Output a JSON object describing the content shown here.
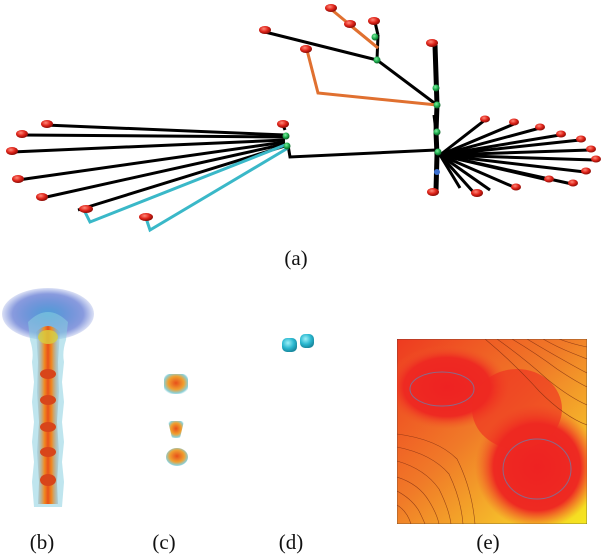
{
  "captions": {
    "a": "(a)",
    "b": "(b)",
    "c": "(c)",
    "d": "(d)",
    "e": "(e)"
  },
  "colors": {
    "branch_default": "#000000",
    "branch_orange": "#e07030",
    "branch_cyan": "#3ab8c8",
    "leaf_node": "#e0241a",
    "junction_node": "#1aa84a",
    "contour_hot": "#ee2222",
    "contour_warm": "#f5a020",
    "contour_edge": "#f5e800"
  }
}
